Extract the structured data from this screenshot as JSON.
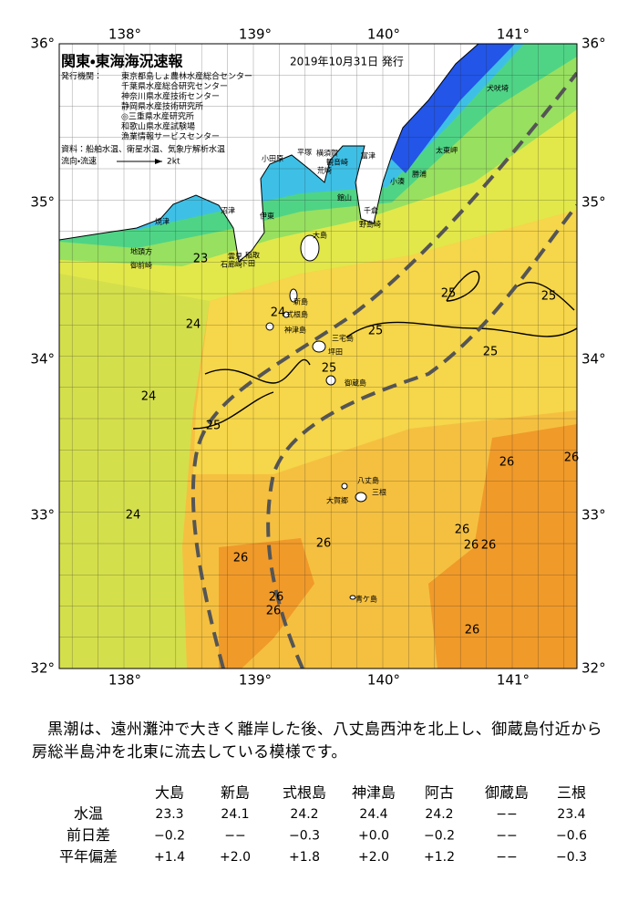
{
  "map": {
    "title": "関東・東海海況速報",
    "issued": "2019年10月31日 発行",
    "agencies_label": "発行機関：",
    "agencies": [
      "東京都島しょ農林水産総合センター",
      "千葉県水産総合研究センター",
      "神奈川県水産技術センター",
      "静岡県水産技術研究所",
      "◎三重県水産研究所",
      "和歌山県水産試験場",
      "漁業情報サービスセンター"
    ],
    "sources": "資料：船舶水温、衛星水温、気象庁解析水温",
    "flow_label": "流向・流速",
    "flow_scale": "2kt",
    "lon_labels": [
      "138°",
      "139°",
      "140°",
      "141°"
    ],
    "lat_labels": [
      "36°",
      "35°",
      "34°",
      "33°",
      "32°"
    ],
    "places": [
      "焼津",
      "沼津",
      "伊東",
      "小田原",
      "平塚",
      "横須賀",
      "観音崎",
      "荒崎",
      "富津",
      "館山",
      "千倉",
      "野島崎",
      "勝浦",
      "小湊",
      "太東岬",
      "犬吠埼",
      "稲取",
      "雲見",
      "下田",
      "石廊崎",
      "地頭方",
      "御前崎",
      "大島",
      "新島",
      "式根島",
      "神津島",
      "三宅島",
      "坪田",
      "御蔵島",
      "八丈島",
      "三根",
      "大賀郷",
      "青ケ島"
    ],
    "temps": [
      "23",
      "24",
      "24",
      "25",
      "24",
      "26",
      "26",
      "26",
      "26",
      "25",
      "25",
      "25",
      "25",
      "25",
      "24",
      "26",
      "26",
      "26",
      "26",
      "26",
      "26"
    ]
  },
  "description": "黒潮は、遠州灘沖で大きく離岸した後、八丈島西沖を北上し、御蔵島付近から房総半島沖を北東に流去している模様です。",
  "table": {
    "columns": [
      "大島",
      "新島",
      "式根島",
      "神津島",
      "阿古",
      "御蔵島",
      "三根"
    ],
    "rows": [
      {
        "label": "水温",
        "values": [
          "23.3",
          "24.1",
          "24.2",
          "24.4",
          "24.2",
          "−−",
          "23.4"
        ]
      },
      {
        "label": "前日差",
        "values": [
          "−0.2",
          "−−",
          "−0.3",
          "+0.0",
          "−0.2",
          "−−",
          "−0.6"
        ]
      },
      {
        "label": "平年偏差",
        "values": [
          "+1.4",
          "+2.0",
          "+1.8",
          "+2.0",
          "+1.2",
          "−−",
          "−0.3"
        ]
      }
    ]
  }
}
